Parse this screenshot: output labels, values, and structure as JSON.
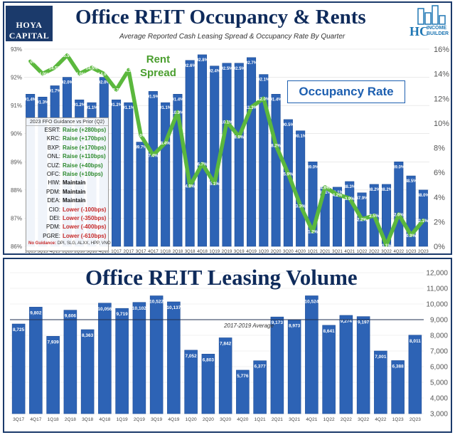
{
  "branding": {
    "left_logo_line1": "HOYA CAPITAL",
    "left_logo_line2": "REAL ESTATE",
    "right_logo_mark": "HC",
    "right_logo_line1": "INCOME",
    "right_logo_line2": "BUILDER"
  },
  "colors": {
    "bar": "#2d63b5",
    "bar_edge": "#1e4d96",
    "line": "#5bb83d",
    "title": "#0f2b5b",
    "callout": "#1d5fb0"
  },
  "chart_data": [
    {
      "type": "bar",
      "title": "Office REIT Occupancy & Rents",
      "subtitle": "Average Reported Cash Leasing Spread & Occupancy Rate By Quarter",
      "categories": [
        "2Q15",
        "3Q15",
        "4Q15",
        "1Q16",
        "2Q16",
        "3Q16",
        "4Q16",
        "1Q17",
        "2Q17",
        "3Q17",
        "4Q17",
        "1Q18",
        "2Q18",
        "3Q18",
        "4Q18",
        "1Q19",
        "2Q19",
        "3Q19",
        "4Q19",
        "1Q20",
        "2Q20",
        "3Q20",
        "4Q20",
        "1Q21",
        "2Q21",
        "3Q21",
        "4Q21",
        "1Q22",
        "2Q22",
        "3Q22",
        "4Q22",
        "1Q23",
        "2Q23"
      ],
      "series": [
        {
          "name": "Occupancy Rate",
          "axis": "left",
          "values": [
            91.4,
            91.3,
            91.7,
            92.0,
            91.2,
            91.1,
            92.0,
            91.2,
            91.1,
            89.7,
            91.5,
            91.1,
            91.4,
            92.6,
            92.8,
            92.4,
            92.5,
            92.5,
            92.7,
            92.1,
            91.4,
            90.5,
            90.1,
            89.0,
            88.1,
            88.1,
            88.3,
            87.9,
            88.2,
            88.2,
            89.0,
            88.5,
            88.0
          ],
          "labels": [
            "91.4%",
            "91.3%",
            "91.7%",
            "92.0%",
            "91.2%",
            "91.1%",
            "92.0%",
            "91.2%",
            "91.1%",
            "89.7%",
            "91.5%",
            "91.1%",
            "91.4%",
            "92.6%",
            "92.8%",
            "92.4%",
            "92.5%",
            "92.5%",
            "92.7%",
            "92.1%",
            "91.4%",
            "90.5%",
            "90.1%",
            "89.0%",
            "88.1%",
            "88.1%",
            "88.3%",
            "87.9%",
            "88.2%",
            "88.2%",
            "89.0%",
            "88.5%",
            "88.0%"
          ]
        },
        {
          "name": "Rent Spread",
          "axis": "right",
          "type": "line",
          "values": [
            15.0,
            14.0,
            14.5,
            15.5,
            14.0,
            14.5,
            14.0,
            12.7,
            14.3,
            9.0,
            7.4,
            8.4,
            10.9,
            4.9,
            6.7,
            5.1,
            10.1,
            8.9,
            11.3,
            12.0,
            8.2,
            5.9,
            3.3,
            1.2,
            4.8,
            4.2,
            3.9,
            2.2,
            2.5,
            0.1,
            2.6,
            0.9,
            2.1
          ],
          "labels": [
            "15.0%",
            "14.0%",
            "14.5%",
            "15.5%",
            "14.0%",
            "14.5%",
            "14.0%",
            "12.7%",
            "14.3%",
            "9.0%",
            "7.4%",
            "8.4%",
            "10.9%",
            "4.9%",
            "6.7%",
            "5.1%",
            "10.1%",
            "8.9%",
            "11.3%",
            "12.0%",
            "8.2%",
            "5.9%",
            "3.3%",
            "1.2%",
            "4.8%",
            "4.2%",
            "3.9%",
            "2.2%",
            "2.5%",
            "0.1%",
            "2.6%",
            "0.9%",
            "2.1%"
          ]
        }
      ],
      "left_axis": {
        "ylim": [
          86,
          93
        ],
        "ticks": [
          "86%",
          "87%",
          "88%",
          "89%",
          "90%",
          "91%",
          "92%",
          "93%"
        ]
      },
      "right_axis": {
        "ylim": [
          0,
          16
        ],
        "ticks": [
          "0%",
          "2%",
          "4%",
          "6%",
          "8%",
          "10%",
          "12%",
          "14%",
          "16%"
        ]
      },
      "callouts": {
        "rent_spread": [
          "Rent",
          "Spread"
        ],
        "occupancy_rate": "Occupancy Rate"
      },
      "guidance": {
        "title": "2023 FFO Guidance vs Prior (Q2)",
        "rows": [
          {
            "company": "ESRT:",
            "value": "Raise (+280bps)",
            "kind": "raise"
          },
          {
            "company": "KRC:",
            "value": "Raise (+170bps)",
            "kind": "raise"
          },
          {
            "company": "BXP:",
            "value": "Raise (+170bps)",
            "kind": "raise"
          },
          {
            "company": "ONL:",
            "value": "Raise (+110bps)",
            "kind": "raise"
          },
          {
            "company": "CUZ:",
            "value": "Raise (+40bps)",
            "kind": "raise"
          },
          {
            "company": "OFC:",
            "value": "Raise (+10bps)",
            "kind": "raise"
          },
          {
            "company": "HIW:",
            "value": "Maintain",
            "kind": "maintain"
          },
          {
            "company": "PDM:",
            "value": "Maintain",
            "kind": "maintain"
          },
          {
            "company": "DEA:",
            "value": "Maintain",
            "kind": "maintain"
          },
          {
            "company": "CIO:",
            "value": "Lower (-100bps)",
            "kind": "lower"
          },
          {
            "company": "DEI:",
            "value": "Lower (-350bps)",
            "kind": "lower"
          },
          {
            "company": "PDM:",
            "value": "Lower (-400bps)",
            "kind": "lower"
          },
          {
            "company": "PGRE:",
            "value": "Lower (-610bps)",
            "kind": "lower"
          }
        ],
        "footer_label": "No Guidance:",
        "footer_text": "DPI, SLG, ALXX, HPP, VNO"
      }
    },
    {
      "type": "bar",
      "title": "Office REIT Leasing Volume",
      "categories": [
        "3Q17",
        "4Q17",
        "1Q18",
        "2Q18",
        "3Q18",
        "4Q18",
        "1Q19",
        "2Q19",
        "3Q19",
        "4Q19",
        "1Q20",
        "2Q20",
        "3Q20",
        "4Q20",
        "1Q21",
        "2Q21",
        "3Q21",
        "4Q21",
        "1Q22",
        "2Q22",
        "3Q22",
        "4Q22",
        "1Q23",
        "2Q23"
      ],
      "values": [
        8725,
        9802,
        7939,
        9606,
        8363,
        10056,
        9719,
        10102,
        10522,
        10137,
        7052,
        6803,
        7842,
        5776,
        6377,
        9173,
        8973,
        10524,
        8641,
        9274,
        9197,
        7001,
        6388,
        8011
      ],
      "labels": [
        "8,725",
        "9,802",
        "7,939",
        "9,606",
        "8,363",
        "10,056",
        "9,719",
        "10,102",
        "10,522",
        "10,137",
        "7,052",
        "6,803",
        "7,842",
        "5,776",
        "6,377",
        "9,173",
        "8,973",
        "10,524",
        "8,641",
        "9,274",
        "9,197",
        "7,001",
        "6,388",
        "8,011"
      ],
      "ylim": [
        3000,
        12000
      ],
      "ticks": [
        "3,000",
        "4,000",
        "5,000",
        "6,000",
        "7,000",
        "8,000",
        "9,000",
        "10,000",
        "11,000",
        "12,000"
      ],
      "reference_line": {
        "label": "2017-2019 Average",
        "value": 9000
      }
    }
  ]
}
